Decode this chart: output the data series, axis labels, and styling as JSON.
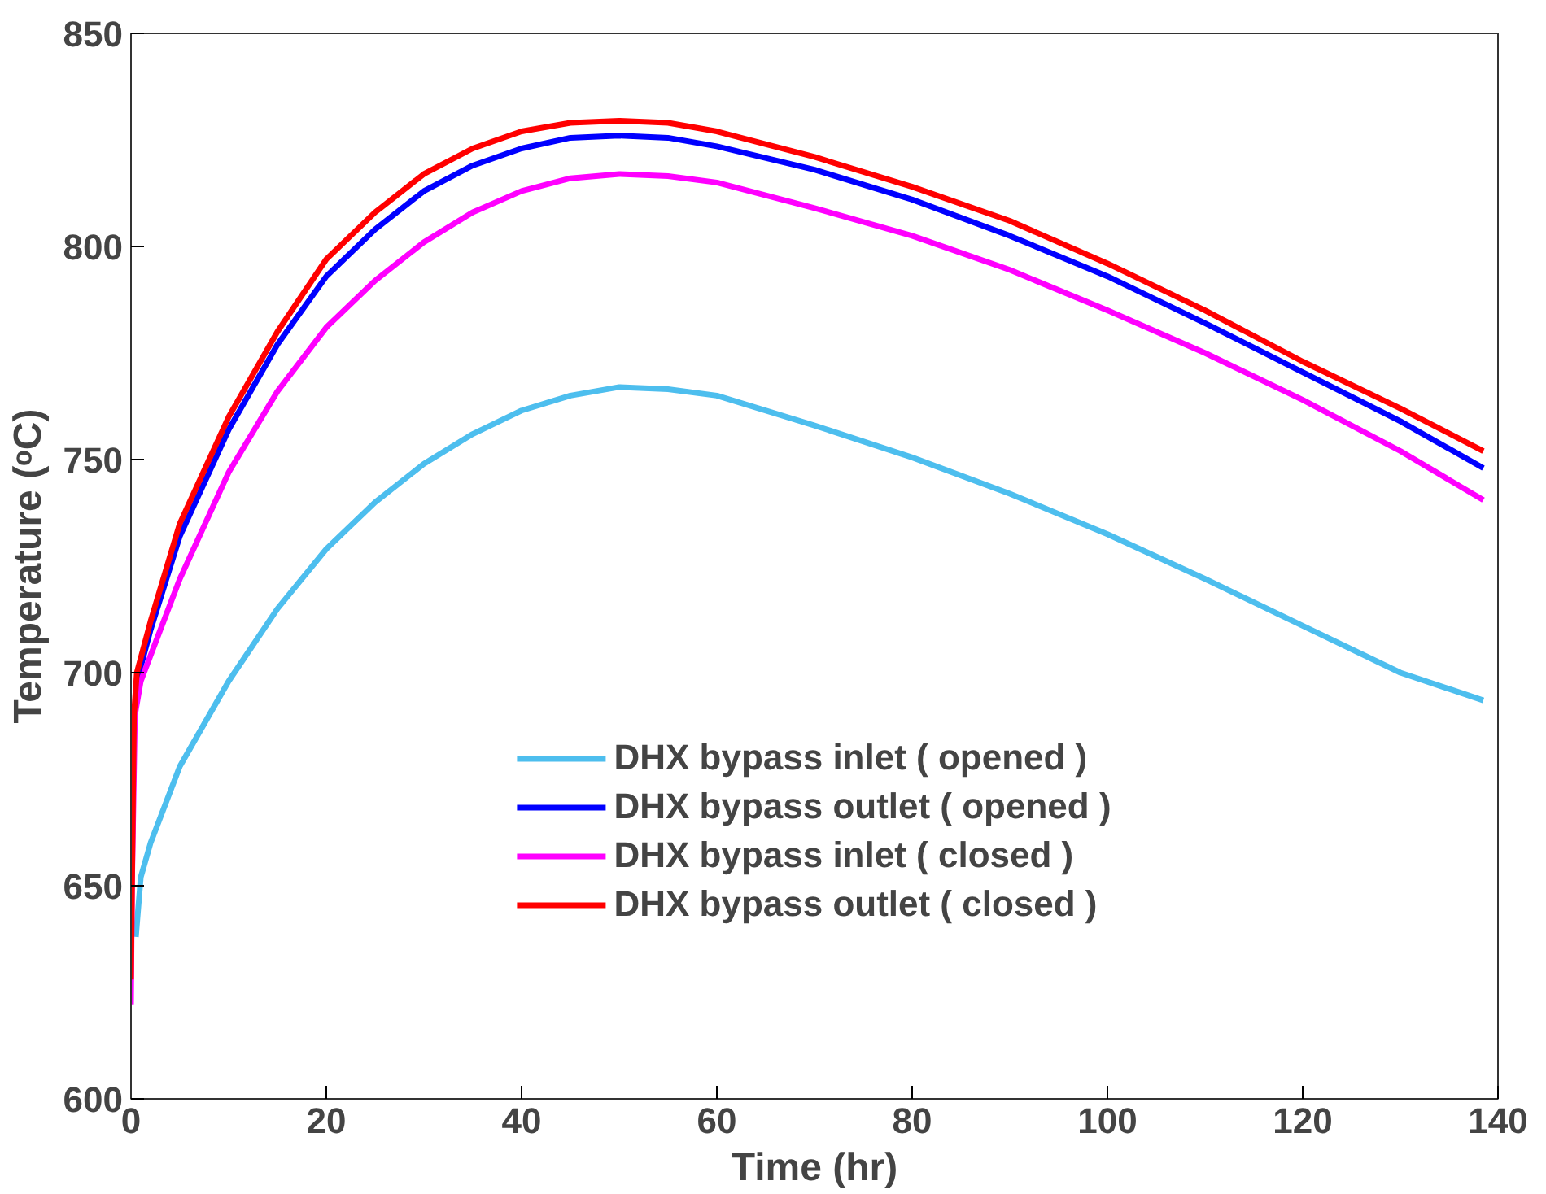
{
  "chart_data": {
    "type": "line",
    "xlabel": "Time (hr)",
    "ylabel": "Temperature (ᵒC)",
    "xlim": [
      0,
      140
    ],
    "xticks": [
      0,
      20,
      40,
      60,
      80,
      100,
      120,
      140
    ],
    "ylim": [
      600,
      850
    ],
    "yticks": [
      600,
      650,
      700,
      750,
      800,
      850
    ],
    "grid": false,
    "legend": "bottom",
    "line_style": "solid",
    "marker": "none",
    "series": [
      {
        "name": "DHX bypass inlet ( opened )",
        "color": "#4dbeee",
        "x": [
          0.5,
          1,
          2,
          5,
          10,
          15,
          20,
          25,
          30,
          35,
          40,
          45,
          50,
          55,
          60,
          70,
          80,
          90,
          100,
          110,
          120,
          130,
          138.5
        ],
        "values": [
          638,
          652,
          660,
          678,
          698,
          715,
          729,
          740,
          749,
          756,
          761.5,
          765,
          767,
          766.5,
          765,
          758,
          750.5,
          742,
          732.5,
          722,
          711,
          700,
          693.5
        ]
      },
      {
        "name": "DHX bypass outlet ( opened )",
        "color": "#0000ff",
        "x": [
          0.6,
          2,
          5,
          10,
          15,
          20,
          25,
          30,
          35,
          40,
          45,
          50,
          55,
          60,
          70,
          80,
          90,
          100,
          110,
          120,
          130,
          138.5
        ],
        "values": [
          698,
          710,
          732,
          757,
          777,
          793,
          804,
          813,
          819,
          823,
          825.5,
          826,
          825.5,
          823.5,
          818,
          811,
          802.5,
          793,
          782,
          770.5,
          759,
          748
        ]
      },
      {
        "name": "DHX bypass inlet ( closed )",
        "color": "#ff00ff",
        "x": [
          0,
          0.1,
          0.4,
          1,
          3,
          5,
          10,
          15,
          20,
          25,
          30,
          35,
          40,
          45,
          50,
          55,
          60,
          70,
          80,
          90,
          100,
          110,
          120,
          130,
          138.5
        ],
        "values": [
          622,
          650,
          690,
          698,
          710,
          722,
          747,
          766,
          781,
          792,
          801,
          808,
          813,
          816,
          817,
          816.5,
          815,
          809,
          802.5,
          794.5,
          785,
          775,
          764,
          752,
          740.5
        ]
      },
      {
        "name": "DHX bypass outlet ( closed )",
        "color": "#ff0000",
        "x": [
          0,
          0.1,
          0.3,
          0.6,
          2,
          5,
          10,
          15,
          20,
          25,
          30,
          35,
          40,
          45,
          50,
          55,
          60,
          70,
          80,
          90,
          100,
          110,
          120,
          130,
          138.5
        ],
        "values": [
          628,
          650,
          690,
          700,
          712,
          735,
          760,
          780,
          797,
          808,
          817,
          823,
          827,
          829,
          829.5,
          829,
          827,
          821,
          814,
          806,
          796,
          785,
          773,
          762,
          752
        ]
      }
    ]
  }
}
